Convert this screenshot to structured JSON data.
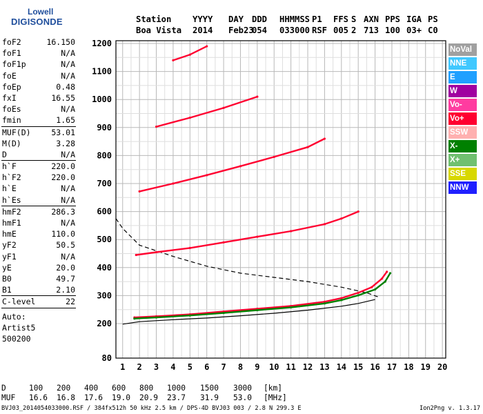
{
  "logo": {
    "line1": "Lowell",
    "line2": "DIGISONDE"
  },
  "header": {
    "row1": [
      "Station",
      "YYYY",
      "DAY",
      "DDD",
      "HHMMSS",
      "P1",
      "FFS",
      "S",
      "AXN",
      "PPS",
      "IGA",
      "PS"
    ],
    "row2": [
      "Boa Vista",
      "2014",
      "Feb23",
      "054",
      "033000",
      "RSF",
      "005",
      "2",
      "713",
      "100",
      "03+",
      "C0"
    ]
  },
  "params": {
    "group1": [
      {
        "k": "foF2",
        "v": "16.150"
      },
      {
        "k": "foF1",
        "v": "N/A"
      },
      {
        "k": "foF1p",
        "v": "N/A"
      },
      {
        "k": "foE",
        "v": "N/A"
      },
      {
        "k": "foEp",
        "v": "0.48"
      },
      {
        "k": "fxI",
        "v": "16.55"
      },
      {
        "k": "foEs",
        "v": "N/A"
      },
      {
        "k": "fmin",
        "v": "1.65"
      }
    ],
    "group2": [
      {
        "k": "MUF(D)",
        "v": "53.01"
      },
      {
        "k": "M(D)",
        "v": "3.28"
      },
      {
        "k": "D",
        "v": "N/A"
      }
    ],
    "group3": [
      {
        "k": "h`F",
        "v": "220.0"
      },
      {
        "k": "h`F2",
        "v": "220.0"
      },
      {
        "k": "h`E",
        "v": "N/A"
      },
      {
        "k": "h`Es",
        "v": "N/A"
      }
    ],
    "group4": [
      {
        "k": "hmF2",
        "v": "286.3"
      },
      {
        "k": "hmF1",
        "v": "N/A"
      },
      {
        "k": "hmE",
        "v": "110.0"
      },
      {
        "k": "yF2",
        "v": "50.5"
      },
      {
        "k": "yF1",
        "v": "N/A"
      },
      {
        "k": "yE",
        "v": "20.0"
      },
      {
        "k": "B0",
        "v": "49.7"
      },
      {
        "k": "B1",
        "v": "2.10"
      }
    ],
    "group5": [
      {
        "k": "C-level",
        "v": "22"
      }
    ],
    "info": [
      "Auto:",
      "Artist5",
      "500200"
    ]
  },
  "legend": [
    {
      "label": "NoVal",
      "color": "#a0a0a0"
    },
    {
      "label": "NNE",
      "color": "#40c8ff"
    },
    {
      "label": "E",
      "color": "#20a0ff"
    },
    {
      "label": "W",
      "color": "#a000a0"
    },
    {
      "label": "Vo-",
      "color": "#ff3ca0"
    },
    {
      "label": "Vo+",
      "color": "#ff0030"
    },
    {
      "label": "SSW",
      "color": "#ffb0b0"
    },
    {
      "label": "X-",
      "color": "#008000"
    },
    {
      "label": "X+",
      "color": "#70c070"
    },
    {
      "label": "SSE",
      "color": "#d8d800"
    },
    {
      "label": "NNW",
      "color": "#2020ff"
    }
  ],
  "footer": {
    "d_label": "D",
    "d_values": [
      "100",
      "200",
      "400",
      "600",
      "800",
      "1000",
      "1500",
      "3000",
      "[km]"
    ],
    "muf_label": "MUF",
    "muf_values": [
      "16.6",
      "16.8",
      "17.6",
      "19.0",
      "20.9",
      "23.7",
      "31.9",
      "53.0",
      "[MHz]"
    ],
    "file_line": "BVJ03_2014054033000.RSF / 384fx512h 50 kHz 2.5 km / DPS-4D BVJ03 003 / 2.8 N 299.3 E",
    "version": "Ion2Png v. 1.3.17"
  },
  "chart_data": {
    "type": "scatter",
    "x_ticks": [
      1,
      2,
      3,
      4,
      5,
      6,
      7,
      8,
      9,
      10,
      11,
      12,
      13,
      14,
      15,
      16,
      17,
      18,
      19,
      20
    ],
    "y_ticks": [
      80,
      200,
      300,
      400,
      500,
      600,
      700,
      800,
      900,
      1000,
      1100,
      1200
    ],
    "xlim": [
      0.6,
      20.2
    ],
    "ylim": [
      80,
      1200
    ],
    "grid": true,
    "legend_position": "right",
    "series": [
      {
        "trace": "F2 O-mode 1st hop",
        "color": "#ff0030",
        "points": [
          [
            1.7,
            222
          ],
          [
            3,
            226
          ],
          [
            5,
            233
          ],
          [
            7,
            243
          ],
          [
            9,
            253
          ],
          [
            11,
            263
          ],
          [
            13,
            278
          ],
          [
            14,
            291
          ],
          [
            15,
            310
          ],
          [
            15.8,
            330
          ],
          [
            16.4,
            360
          ],
          [
            16.7,
            385
          ]
        ]
      },
      {
        "trace": "F2 X-mode 1st hop",
        "color": "#008000",
        "points": [
          [
            1.7,
            218
          ],
          [
            3,
            222
          ],
          [
            5,
            229
          ],
          [
            7,
            238
          ],
          [
            9,
            248
          ],
          [
            11,
            258
          ],
          [
            13,
            272
          ],
          [
            14,
            284
          ],
          [
            15,
            301
          ],
          [
            16,
            322
          ],
          [
            16.6,
            350
          ],
          [
            16.9,
            380
          ]
        ]
      },
      {
        "trace": "F2 2nd hop",
        "color": "#ff0030",
        "points": [
          [
            1.8,
            445
          ],
          [
            3,
            455
          ],
          [
            5,
            470
          ],
          [
            7,
            490
          ],
          [
            9,
            510
          ],
          [
            11,
            530
          ],
          [
            13,
            555
          ],
          [
            14,
            575
          ],
          [
            15,
            600
          ]
        ]
      },
      {
        "trace": "F2 3rd hop",
        "color": "#ff0030",
        "points": [
          [
            2,
            672
          ],
          [
            4,
            700
          ],
          [
            6,
            730
          ],
          [
            8,
            762
          ],
          [
            10,
            795
          ],
          [
            12,
            830
          ],
          [
            13,
            860
          ]
        ]
      },
      {
        "trace": "F2 4th hop",
        "color": "#ff0030",
        "points": [
          [
            3,
            903
          ],
          [
            5,
            935
          ],
          [
            7,
            970
          ],
          [
            9,
            1010
          ]
        ]
      },
      {
        "trace": "F2 5th hop",
        "color": "#ff0030",
        "points": [
          [
            4,
            1140
          ],
          [
            5,
            1160
          ],
          [
            6,
            1190
          ]
        ]
      }
    ],
    "profile_real_height": [
      [
        1,
        198
      ],
      [
        2,
        207
      ],
      [
        4,
        214
      ],
      [
        6,
        220
      ],
      [
        8,
        228
      ],
      [
        10,
        237
      ],
      [
        12,
        248
      ],
      [
        14,
        262
      ],
      [
        15,
        272
      ],
      [
        16,
        286
      ]
    ],
    "profile_extrapolated": [
      [
        0.6,
        575
      ],
      [
        1,
        540
      ],
      [
        2,
        480
      ],
      [
        4,
        440
      ],
      [
        6,
        405
      ],
      [
        8,
        380
      ],
      [
        10,
        365
      ],
      [
        12,
        350
      ],
      [
        14,
        330
      ],
      [
        15.5,
        310
      ],
      [
        16.2,
        295
      ]
    ]
  }
}
